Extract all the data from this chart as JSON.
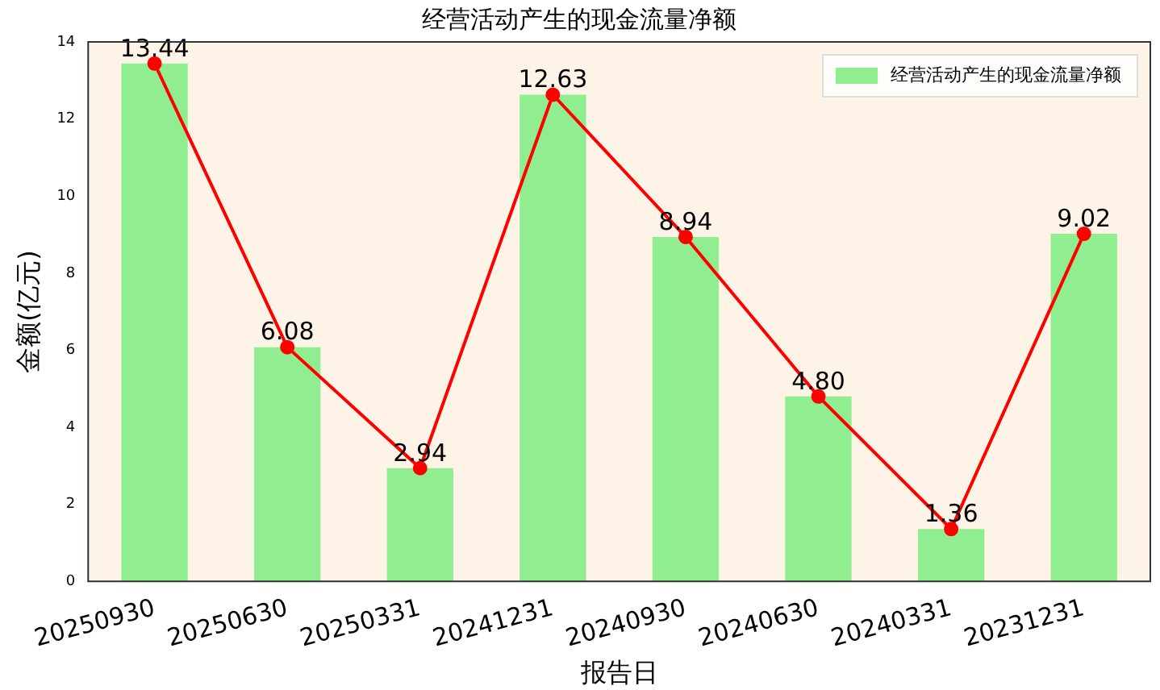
{
  "chart_data": {
    "type": "bar",
    "title": "经营活动产生的现金流量净额",
    "xlabel": "报告日",
    "ylabel": "金额(亿元)",
    "categories": [
      "20250930",
      "20250630",
      "20250331",
      "20241231",
      "20240930",
      "20240630",
      "20240331",
      "20231231"
    ],
    "series": [
      {
        "name": "经营活动产生的现金流量净额",
        "color": "#90ee90",
        "values": [
          13.44,
          6.08,
          2.94,
          12.63,
          8.94,
          4.8,
          1.36,
          9.02
        ]
      },
      {
        "type": "line",
        "color": "#ff0000",
        "marker": "circle",
        "values": [
          13.44,
          6.08,
          2.94,
          12.63,
          8.94,
          4.8,
          1.36,
          9.02
        ],
        "value_labels": [
          "13.44",
          "6.08",
          "2.94",
          "12.63",
          "8.94",
          "4.80",
          "1.36",
          "9.02"
        ]
      }
    ],
    "ylim": [
      0,
      14
    ],
    "yticks": [
      0,
      2,
      4,
      6,
      8,
      10,
      12,
      14
    ],
    "legend": "top right"
  }
}
